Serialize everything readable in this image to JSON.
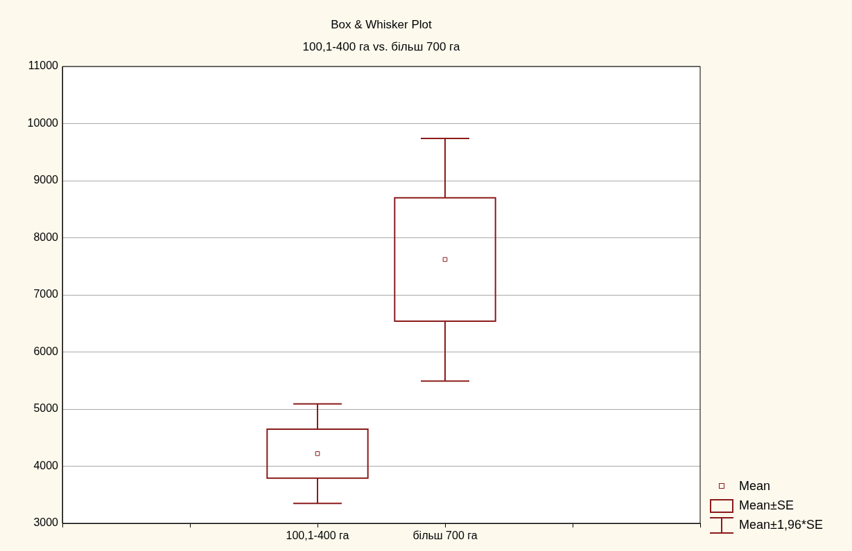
{
  "chart_data": {
    "type": "box",
    "title": "Box & Whisker Plot",
    "subtitle": "100,1-400 га vs. більш 700 га",
    "categories": [
      null,
      null,
      "100,1-400 га",
      "більш 700 га",
      null,
      null
    ],
    "ylim": [
      3000,
      11000
    ],
    "yticks": [
      3000,
      4000,
      5000,
      6000,
      7000,
      8000,
      9000,
      10000,
      11000
    ],
    "grid": "y",
    "legend": "bottom right",
    "annotations": [
      "Mean±1,96*SE"
    ],
    "series": [
      {
        "name": "Mean",
        "type": "scatter",
        "marker": "square",
        "color": "#8b1a1a",
        "values": [
          null,
          null,
          4220,
          7620,
          null,
          null
        ]
      },
      {
        "name": "Mean±SE",
        "color": "#8b1a1a",
        "boxes": [
          null,
          null,
          {
            "low": 3350,
            "q1": 3790,
            "q3": 4650,
            "high": 5090
          },
          {
            "low": 5490,
            "q1": 6540,
            "q3": 8700,
            "high": 9740
          },
          null,
          null
        ]
      }
    ]
  }
}
